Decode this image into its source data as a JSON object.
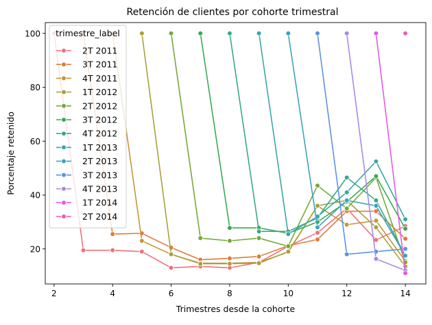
{
  "chart_data": {
    "type": "line",
    "title": "Retención de clientes por cohorte trimestral",
    "xlabel": "Trimestres desde la cohorte",
    "ylabel": "Porcentaje retenido",
    "xlim": [
      1.7,
      14.7
    ],
    "ylim": [
      7,
      104
    ],
    "xticks": [
      2,
      4,
      6,
      8,
      10,
      12,
      14
    ],
    "yticks": [
      20,
      40,
      60,
      80,
      100
    ],
    "grid": false,
    "legend_title": "trimestre_label",
    "legend_position": "top-left",
    "series": [
      {
        "name": "2T 2011",
        "color": "#f0707a",
        "x": [
          2,
          3,
          4,
          5,
          6,
          7,
          8,
          9,
          10,
          11,
          12,
          13,
          14
        ],
        "y": [
          100,
          19.5,
          19.5,
          19,
          13,
          13.5,
          13,
          15,
          21,
          26,
          35,
          23.3,
          28.5
        ]
      },
      {
        "name": "3T 2011",
        "color": "#e07b39",
        "x": [
          3,
          4,
          5,
          6,
          7,
          8,
          9,
          10,
          11,
          12,
          13,
          14
        ],
        "y": [
          100,
          25.5,
          25.8,
          20.5,
          16,
          16.5,
          17.2,
          21.2,
          23.5,
          34,
          34,
          23.8
        ]
      },
      {
        "name": "4T 2011",
        "color": "#c89437",
        "x": [
          4,
          5,
          6,
          7,
          8,
          9,
          10,
          11,
          12,
          13,
          14
        ],
        "y": [
          100,
          23,
          18,
          14.7,
          14.7,
          15,
          18.8,
          36,
          29,
          30.5,
          15.5
        ]
      },
      {
        "name": "1T 2012",
        "color": "#a9a03a",
        "x": [
          5,
          6,
          7,
          8,
          9,
          10,
          11,
          12,
          13,
          14
        ],
        "y": [
          100,
          18,
          14.5,
          14.5,
          14.7,
          19,
          36,
          38,
          28,
          13.5
        ]
      },
      {
        "name": "2T 2012",
        "color": "#74aa38",
        "x": [
          6,
          7,
          8,
          9,
          10,
          11,
          12,
          13,
          14
        ],
        "y": [
          100,
          24,
          23,
          24,
          21,
          43.5,
          35,
          46.5,
          15
        ]
      },
      {
        "name": "3T 2012",
        "color": "#38aa52",
        "x": [
          7,
          8,
          9,
          10,
          11,
          12,
          13,
          14
        ],
        "y": [
          100,
          27.8,
          27.8,
          25.8,
          30,
          37.5,
          47,
          27.5
        ]
      },
      {
        "name": "4T 2012",
        "color": "#36a98a",
        "x": [
          8,
          9,
          10,
          11,
          12,
          13,
          14
        ],
        "y": [
          100,
          26.5,
          26.5,
          31.5,
          46.5,
          38,
          17.5
        ]
      },
      {
        "name": "1T 2013",
        "color": "#38a7a5",
        "x": [
          9,
          10,
          11,
          12,
          13,
          14
        ],
        "y": [
          100,
          25.5,
          32,
          41,
          52.5,
          31
        ]
      },
      {
        "name": "2T 2013",
        "color": "#3aa3be",
        "x": [
          10,
          11,
          12,
          13,
          14
        ],
        "y": [
          100,
          28,
          38,
          36,
          17.5
        ]
      },
      {
        "name": "3T 2013",
        "color": "#5b93e0",
        "x": [
          11,
          12,
          13,
          14
        ],
        "y": [
          100,
          18,
          19,
          20
        ]
      },
      {
        "name": "4T 2013",
        "color": "#a889e8",
        "x": [
          12,
          13,
          14
        ],
        "y": [
          100,
          16.3,
          12
        ]
      },
      {
        "name": "1T 2014",
        "color": "#e15ae5",
        "x": [
          13,
          14
        ],
        "y": [
          100,
          11
        ]
      },
      {
        "name": "2T 2014",
        "color": "#ec5fb4",
        "x": [
          14
        ],
        "y": [
          100
        ]
      }
    ]
  }
}
